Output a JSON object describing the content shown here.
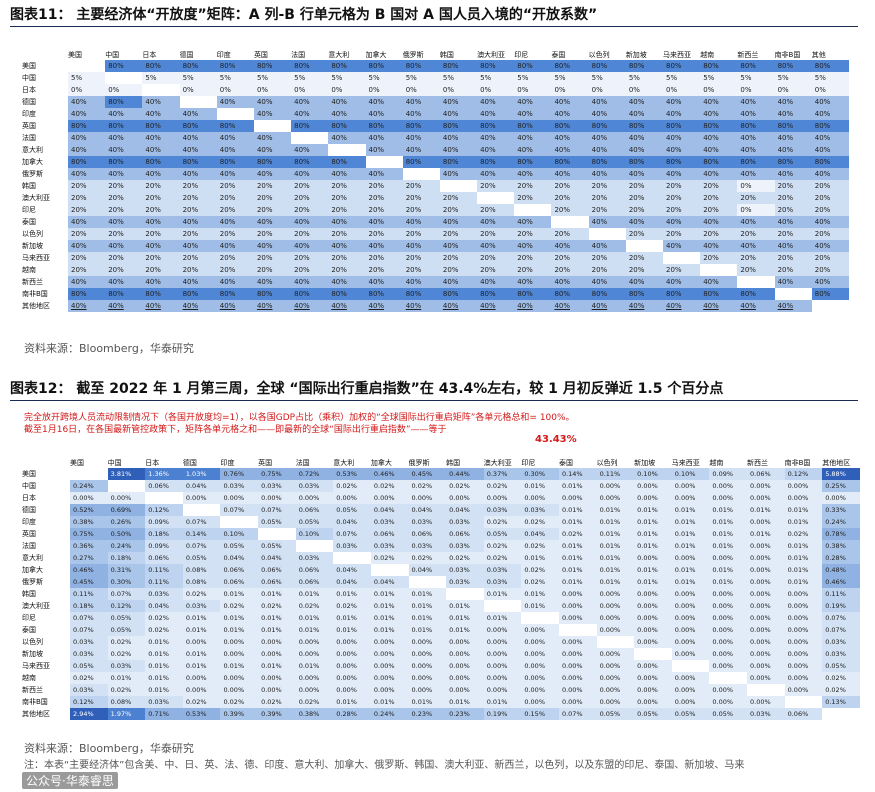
{
  "figure11": {
    "title": "图表11：  主要经济体“开放度”矩阵：A 列-B 行单元格为 B 国对 A 国人员入境的“开放系数”",
    "source": "资料来源：Bloomberg，华泰研究",
    "columns": [
      "美国",
      "中国",
      "日本",
      "德国",
      "印度",
      "英国",
      "法国",
      "意大利",
      "加拿大",
      "俄罗斯",
      "韩国",
      "澳大利亚",
      "印尼",
      "泰国",
      "以色列",
      "新加坡",
      "马来西亚",
      "越南",
      "新西兰",
      "南非B国",
      "其他"
    ],
    "rows": [
      {
        "label": "美国",
        "cells": [
          "",
          "80%",
          "80%",
          "80%",
          "80%",
          "80%",
          "80%",
          "80%",
          "80%",
          "80%",
          "80%",
          "80%",
          "80%",
          "80%",
          "80%",
          "80%",
          "80%",
          "80%",
          "80%",
          "80%",
          "80%"
        ]
      },
      {
        "label": "中国",
        "cells": [
          "5%",
          "",
          "5%",
          "5%",
          "5%",
          "5%",
          "5%",
          "5%",
          "5%",
          "5%",
          "5%",
          "5%",
          "5%",
          "5%",
          "5%",
          "5%",
          "5%",
          "5%",
          "5%",
          "5%",
          "5%"
        ]
      },
      {
        "label": "日本",
        "cells": [
          "0%",
          "0%",
          "",
          "0%",
          "0%",
          "0%",
          "0%",
          "0%",
          "0%",
          "0%",
          "0%",
          "0%",
          "0%",
          "0%",
          "0%",
          "0%",
          "0%",
          "0%",
          "0%",
          "0%",
          "0%"
        ]
      },
      {
        "label": "德国",
        "cells": [
          "40%",
          "80%",
          "40%",
          "",
          "40%",
          "40%",
          "40%",
          "40%",
          "40%",
          "40%",
          "40%",
          "40%",
          "40%",
          "40%",
          "40%",
          "40%",
          "40%",
          "40%",
          "40%",
          "40%",
          "40%"
        ]
      },
      {
        "label": "印度",
        "cells": [
          "40%",
          "40%",
          "40%",
          "40%",
          "",
          "40%",
          "40%",
          "40%",
          "40%",
          "40%",
          "40%",
          "40%",
          "40%",
          "40%",
          "40%",
          "40%",
          "40%",
          "40%",
          "40%",
          "40%",
          "40%"
        ]
      },
      {
        "label": "英国",
        "cells": [
          "80%",
          "80%",
          "80%",
          "80%",
          "80%",
          "",
          "80%",
          "80%",
          "80%",
          "80%",
          "80%",
          "80%",
          "80%",
          "80%",
          "80%",
          "80%",
          "80%",
          "80%",
          "80%",
          "80%",
          "80%"
        ]
      },
      {
        "label": "法国",
        "cells": [
          "40%",
          "40%",
          "40%",
          "40%",
          "40%",
          "40%",
          "",
          "40%",
          "40%",
          "40%",
          "40%",
          "40%",
          "40%",
          "40%",
          "40%",
          "40%",
          "40%",
          "40%",
          "40%",
          "40%",
          "40%"
        ]
      },
      {
        "label": "意大利",
        "cells": [
          "40%",
          "40%",
          "40%",
          "40%",
          "40%",
          "40%",
          "40%",
          "",
          "40%",
          "40%",
          "40%",
          "40%",
          "40%",
          "40%",
          "40%",
          "40%",
          "40%",
          "40%",
          "40%",
          "40%",
          "40%"
        ]
      },
      {
        "label": "加拿大",
        "cells": [
          "80%",
          "80%",
          "80%",
          "80%",
          "80%",
          "80%",
          "80%",
          "80%",
          "",
          "80%",
          "80%",
          "80%",
          "80%",
          "80%",
          "80%",
          "80%",
          "80%",
          "80%",
          "80%",
          "80%",
          "80%"
        ]
      },
      {
        "label": "俄罗斯",
        "cells": [
          "40%",
          "40%",
          "40%",
          "40%",
          "40%",
          "40%",
          "40%",
          "40%",
          "40%",
          "",
          "40%",
          "40%",
          "40%",
          "40%",
          "40%",
          "40%",
          "40%",
          "40%",
          "40%",
          "40%",
          "40%"
        ]
      },
      {
        "label": "韩国",
        "cells": [
          "20%",
          "20%",
          "20%",
          "20%",
          "20%",
          "20%",
          "20%",
          "20%",
          "20%",
          "20%",
          "",
          "20%",
          "20%",
          "20%",
          "20%",
          "20%",
          "20%",
          "20%",
          "0%",
          "20%",
          "20%"
        ]
      },
      {
        "label": "澳大利亚",
        "cells": [
          "20%",
          "20%",
          "20%",
          "20%",
          "20%",
          "20%",
          "20%",
          "20%",
          "20%",
          "20%",
          "20%",
          "",
          "20%",
          "20%",
          "20%",
          "20%",
          "20%",
          "20%",
          "20%",
          "20%",
          "20%"
        ]
      },
      {
        "label": "印尼",
        "cells": [
          "20%",
          "20%",
          "20%",
          "20%",
          "20%",
          "20%",
          "20%",
          "20%",
          "20%",
          "20%",
          "20%",
          "20%",
          "",
          "20%",
          "20%",
          "20%",
          "20%",
          "20%",
          "0%",
          "20%",
          "20%"
        ]
      },
      {
        "label": "泰国",
        "cells": [
          "40%",
          "40%",
          "40%",
          "40%",
          "40%",
          "40%",
          "40%",
          "40%",
          "40%",
          "40%",
          "40%",
          "40%",
          "40%",
          "",
          "40%",
          "40%",
          "40%",
          "40%",
          "40%",
          "40%",
          "40%"
        ]
      },
      {
        "label": "以色列",
        "cells": [
          "20%",
          "20%",
          "20%",
          "20%",
          "20%",
          "20%",
          "20%",
          "20%",
          "20%",
          "20%",
          "20%",
          "20%",
          "20%",
          "20%",
          "",
          "20%",
          "20%",
          "20%",
          "20%",
          "20%",
          "20%"
        ]
      },
      {
        "label": "新加坡",
        "cells": [
          "40%",
          "40%",
          "40%",
          "40%",
          "40%",
          "40%",
          "40%",
          "40%",
          "40%",
          "40%",
          "40%",
          "40%",
          "40%",
          "40%",
          "40%",
          "",
          "40%",
          "40%",
          "40%",
          "40%",
          "40%"
        ]
      },
      {
        "label": "马来西亚",
        "cells": [
          "20%",
          "20%",
          "20%",
          "20%",
          "20%",
          "20%",
          "20%",
          "20%",
          "20%",
          "20%",
          "20%",
          "20%",
          "20%",
          "20%",
          "20%",
          "20%",
          "",
          "20%",
          "20%",
          "20%",
          "20%"
        ]
      },
      {
        "label": "越南",
        "cells": [
          "20%",
          "20%",
          "20%",
          "20%",
          "20%",
          "20%",
          "20%",
          "20%",
          "20%",
          "20%",
          "20%",
          "20%",
          "20%",
          "20%",
          "20%",
          "20%",
          "20%",
          "",
          "20%",
          "20%",
          "20%"
        ]
      },
      {
        "label": "新西兰",
        "cells": [
          "40%",
          "40%",
          "40%",
          "40%",
          "40%",
          "40%",
          "40%",
          "40%",
          "40%",
          "40%",
          "40%",
          "40%",
          "40%",
          "40%",
          "40%",
          "40%",
          "40%",
          "40%",
          "",
          "40%",
          "40%"
        ]
      },
      {
        "label": "南非B国",
        "cells": [
          "80%",
          "80%",
          "80%",
          "80%",
          "80%",
          "80%",
          "80%",
          "80%",
          "80%",
          "80%",
          "80%",
          "80%",
          "80%",
          "80%",
          "80%",
          "80%",
          "80%",
          "80%",
          "80%",
          "",
          "80%"
        ]
      },
      {
        "label": "其他地区",
        "cells": [
          "40%",
          "40%",
          "40%",
          "40%",
          "40%",
          "40%",
          "40%",
          "40%",
          "40%",
          "40%",
          "40%",
          "40%",
          "40%",
          "40%",
          "40%",
          "40%",
          "40%",
          "40%",
          "40%",
          "40%",
          ""
        ]
      }
    ]
  },
  "figure12": {
    "title": "图表12：  截至 2022 年 1 月第三周，全球 “国际出行重启指数”在 43.4%左右，较 1 月初反弹近 1.5 个百分点",
    "note_line1": "完全放开跨境人员流动限制情况下（各国开放度均=1），以各国GDP占比（乘积）加权的“全球国际出行重启矩阵”各单元格总和= 100%。",
    "note_line2": "截至1月16日，在各国最新管控政策下，矩阵各单元格之和——即最新的全球“国际出行重启指数”——等于",
    "index_value": "43.43%",
    "source": "资料来源：Bloomberg，华泰研究",
    "footnote": "注：本表“主要经济体”包含美、中、日、英、法、德、印度、意大利、加拿大、俄罗斯、韩国、澳大利亚、新西兰，以色列，以及东盟的印尼、泰国、新加坡、马来",
    "watermark": "公众号·华泰睿思",
    "columns": [
      "美国",
      "中国",
      "日本",
      "德国",
      "印度",
      "英国",
      "法国",
      "意大利",
      "加拿大",
      "俄罗斯",
      "韩国",
      "澳大利亚",
      "印尼",
      "泰国",
      "以色列",
      "新加坡",
      "马来西亚",
      "越南",
      "新西兰",
      "南非B国",
      "其他地区"
    ],
    "rows": [
      {
        "label": "美国",
        "cells": [
          "",
          "3.81%",
          "1.36%",
          "1.03%",
          "0.76%",
          "0.75%",
          "0.72%",
          "0.53%",
          "0.46%",
          "0.45%",
          "0.44%",
          "0.37%",
          "0.30%",
          "0.14%",
          "0.11%",
          "0.10%",
          "0.10%",
          "0.09%",
          "0.06%",
          "0.12%",
          "5.88%"
        ]
      },
      {
        "label": "中国",
        "cells": [
          "0.24%",
          "",
          "0.06%",
          "0.04%",
          "0.03%",
          "0.03%",
          "0.03%",
          "0.02%",
          "0.02%",
          "0.02%",
          "0.02%",
          "0.02%",
          "0.01%",
          "0.01%",
          "0.00%",
          "0.00%",
          "0.00%",
          "0.00%",
          "0.00%",
          "0.00%",
          "0.25%"
        ]
      },
      {
        "label": "日本",
        "cells": [
          "0.00%",
          "0.00%",
          "",
          "0.00%",
          "0.00%",
          "0.00%",
          "0.00%",
          "0.00%",
          "0.00%",
          "0.00%",
          "0.00%",
          "0.00%",
          "0.00%",
          "0.00%",
          "0.00%",
          "0.00%",
          "0.00%",
          "0.00%",
          "0.00%",
          "0.00%",
          "0.00%"
        ]
      },
      {
        "label": "德国",
        "cells": [
          "0.52%",
          "0.69%",
          "0.12%",
          "",
          "0.07%",
          "0.07%",
          "0.06%",
          "0.05%",
          "0.04%",
          "0.04%",
          "0.04%",
          "0.03%",
          "0.03%",
          "0.01%",
          "0.01%",
          "0.01%",
          "0.01%",
          "0.01%",
          "0.01%",
          "0.01%",
          "0.33%"
        ]
      },
      {
        "label": "印度",
        "cells": [
          "0.38%",
          "0.26%",
          "0.09%",
          "0.07%",
          "",
          "0.05%",
          "0.05%",
          "0.04%",
          "0.03%",
          "0.03%",
          "0.03%",
          "0.02%",
          "0.02%",
          "0.01%",
          "0.01%",
          "0.01%",
          "0.01%",
          "0.01%",
          "0.00%",
          "0.01%",
          "0.24%"
        ]
      },
      {
        "label": "英国",
        "cells": [
          "0.75%",
          "0.50%",
          "0.18%",
          "0.14%",
          "0.10%",
          "",
          "0.10%",
          "0.07%",
          "0.06%",
          "0.06%",
          "0.06%",
          "0.05%",
          "0.04%",
          "0.02%",
          "0.01%",
          "0.01%",
          "0.01%",
          "0.01%",
          "0.01%",
          "0.02%",
          "0.78%"
        ]
      },
      {
        "label": "法国",
        "cells": [
          "0.36%",
          "0.24%",
          "0.09%",
          "0.07%",
          "0.05%",
          "0.05%",
          "",
          "0.03%",
          "0.03%",
          "0.03%",
          "0.03%",
          "0.02%",
          "0.02%",
          "0.01%",
          "0.01%",
          "0.01%",
          "0.01%",
          "0.01%",
          "0.00%",
          "0.01%",
          "0.38%"
        ]
      },
      {
        "label": "意大利",
        "cells": [
          "0.27%",
          "0.18%",
          "0.06%",
          "0.05%",
          "0.04%",
          "0.04%",
          "0.03%",
          "",
          "0.02%",
          "0.02%",
          "0.02%",
          "0.02%",
          "0.01%",
          "0.01%",
          "0.01%",
          "0.00%",
          "0.00%",
          "0.00%",
          "0.00%",
          "0.01%",
          "0.28%"
        ]
      },
      {
        "label": "加拿大",
        "cells": [
          "0.46%",
          "0.31%",
          "0.11%",
          "0.08%",
          "0.06%",
          "0.06%",
          "0.06%",
          "0.04%",
          "",
          "0.04%",
          "0.03%",
          "0.03%",
          "0.02%",
          "0.01%",
          "0.01%",
          "0.01%",
          "0.01%",
          "0.01%",
          "0.00%",
          "0.01%",
          "0.48%"
        ]
      },
      {
        "label": "俄罗斯",
        "cells": [
          "0.45%",
          "0.30%",
          "0.11%",
          "0.08%",
          "0.06%",
          "0.06%",
          "0.06%",
          "0.04%",
          "0.04%",
          "",
          "0.03%",
          "0.03%",
          "0.02%",
          "0.01%",
          "0.01%",
          "0.01%",
          "0.01%",
          "0.01%",
          "0.00%",
          "0.01%",
          "0.46%"
        ]
      },
      {
        "label": "韩国",
        "cells": [
          "0.11%",
          "0.07%",
          "0.03%",
          "0.02%",
          "0.01%",
          "0.01%",
          "0.01%",
          "0.01%",
          "0.01%",
          "0.01%",
          "",
          "0.01%",
          "0.01%",
          "0.00%",
          "0.00%",
          "0.00%",
          "0.00%",
          "0.00%",
          "0.00%",
          "0.00%",
          "0.11%"
        ]
      },
      {
        "label": "澳大利亚",
        "cells": [
          "0.18%",
          "0.12%",
          "0.04%",
          "0.03%",
          "0.02%",
          "0.02%",
          "0.02%",
          "0.02%",
          "0.01%",
          "0.01%",
          "0.01%",
          "",
          "0.01%",
          "0.00%",
          "0.00%",
          "0.00%",
          "0.00%",
          "0.00%",
          "0.00%",
          "0.00%",
          "0.19%"
        ]
      },
      {
        "label": "印尼",
        "cells": [
          "0.07%",
          "0.05%",
          "0.02%",
          "0.01%",
          "0.01%",
          "0.01%",
          "0.01%",
          "0.01%",
          "0.01%",
          "0.01%",
          "0.01%",
          "0.01%",
          "",
          "0.00%",
          "0.00%",
          "0.00%",
          "0.00%",
          "0.00%",
          "0.00%",
          "0.00%",
          "0.07%"
        ]
      },
      {
        "label": "泰国",
        "cells": [
          "0.07%",
          "0.05%",
          "0.02%",
          "0.01%",
          "0.01%",
          "0.01%",
          "0.01%",
          "0.01%",
          "0.01%",
          "0.01%",
          "0.01%",
          "0.00%",
          "0.00%",
          "",
          "0.00%",
          "0.00%",
          "0.00%",
          "0.00%",
          "0.00%",
          "0.00%",
          "0.07%"
        ]
      },
      {
        "label": "以色列",
        "cells": [
          "0.03%",
          "0.02%",
          "0.01%",
          "0.00%",
          "0.00%",
          "0.00%",
          "0.00%",
          "0.00%",
          "0.00%",
          "0.00%",
          "0.00%",
          "0.00%",
          "0.00%",
          "0.00%",
          "",
          "0.00%",
          "0.00%",
          "0.00%",
          "0.00%",
          "0.00%",
          "0.03%"
        ]
      },
      {
        "label": "新加坡",
        "cells": [
          "0.03%",
          "0.02%",
          "0.01%",
          "0.01%",
          "0.00%",
          "0.00%",
          "0.00%",
          "0.00%",
          "0.00%",
          "0.00%",
          "0.00%",
          "0.00%",
          "0.00%",
          "0.00%",
          "0.00%",
          "",
          "0.00%",
          "0.00%",
          "0.00%",
          "0.00%",
          "0.03%"
        ]
      },
      {
        "label": "马来西亚",
        "cells": [
          "0.05%",
          "0.03%",
          "0.01%",
          "0.01%",
          "0.01%",
          "0.01%",
          "0.01%",
          "0.00%",
          "0.00%",
          "0.00%",
          "0.00%",
          "0.00%",
          "0.00%",
          "0.00%",
          "0.00%",
          "0.00%",
          "",
          "0.00%",
          "0.00%",
          "0.00%",
          "0.05%"
        ]
      },
      {
        "label": "越南",
        "cells": [
          "0.02%",
          "0.01%",
          "0.01%",
          "0.00%",
          "0.00%",
          "0.00%",
          "0.00%",
          "0.00%",
          "0.00%",
          "0.00%",
          "0.00%",
          "0.00%",
          "0.00%",
          "0.00%",
          "0.00%",
          "0.00%",
          "0.00%",
          "",
          "0.00%",
          "0.00%",
          "0.02%"
        ]
      },
      {
        "label": "新西兰",
        "cells": [
          "0.03%",
          "0.02%",
          "0.01%",
          "0.00%",
          "0.00%",
          "0.00%",
          "0.00%",
          "0.00%",
          "0.00%",
          "0.00%",
          "0.00%",
          "0.00%",
          "0.00%",
          "0.00%",
          "0.00%",
          "0.00%",
          "0.00%",
          "0.00%",
          "",
          "0.00%",
          "0.02%"
        ]
      },
      {
        "label": "南非B国",
        "cells": [
          "0.12%",
          "0.08%",
          "0.03%",
          "0.02%",
          "0.02%",
          "0.02%",
          "0.02%",
          "0.01%",
          "0.01%",
          "0.01%",
          "0.01%",
          "0.01%",
          "0.00%",
          "0.00%",
          "0.00%",
          "0.00%",
          "0.00%",
          "0.00%",
          "0.00%",
          "",
          "0.13%"
        ]
      },
      {
        "label": "其他地区",
        "cells": [
          "2.94%",
          "1.97%",
          "0.71%",
          "0.53%",
          "0.39%",
          "0.39%",
          "0.38%",
          "0.28%",
          "0.24%",
          "0.23%",
          "0.23%",
          "0.19%",
          "0.15%",
          "0.07%",
          "0.05%",
          "0.05%",
          "0.05%",
          "0.05%",
          "0.03%",
          "0.06%",
          ""
        ]
      }
    ]
  }
}
